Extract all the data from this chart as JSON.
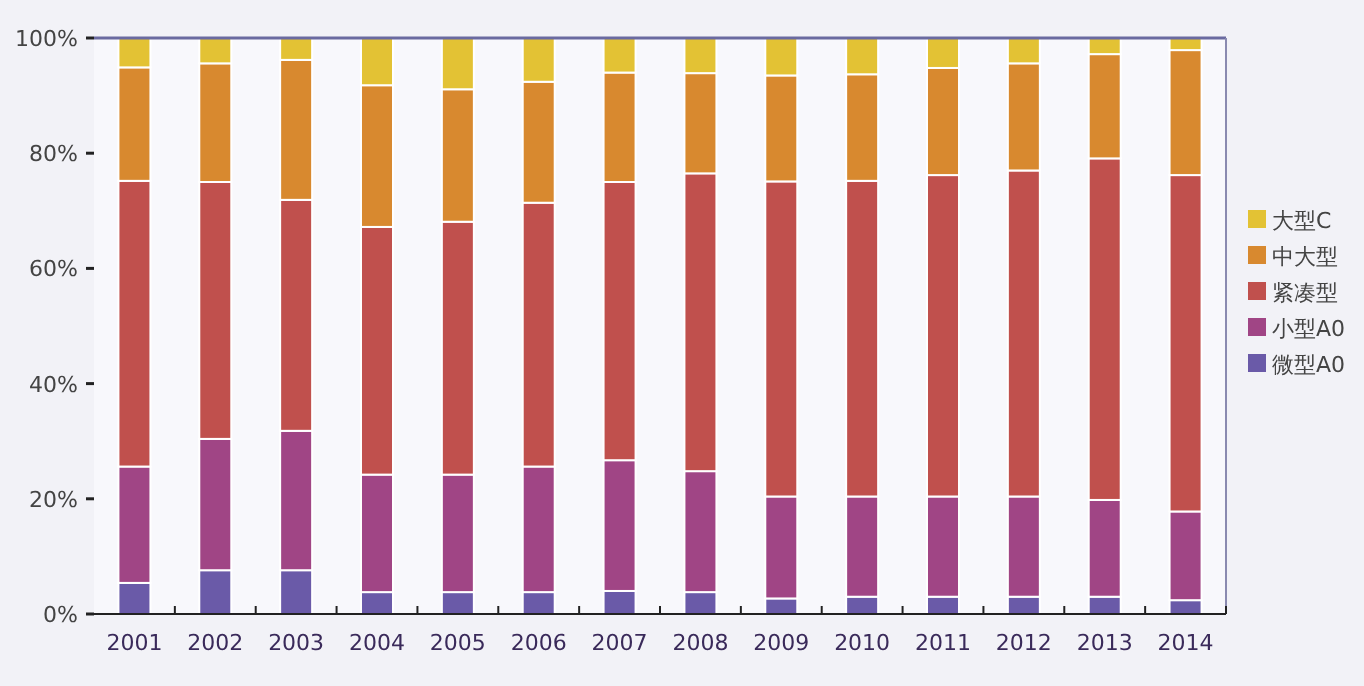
{
  "chart_data": {
    "type": "bar",
    "stacked": true,
    "categories": [
      "2001",
      "2002",
      "2003",
      "2004",
      "2005",
      "2006",
      "2007",
      "2008",
      "2009",
      "2010",
      "2011",
      "2012",
      "2013",
      "2014"
    ],
    "ylim": [
      0,
      100
    ],
    "yticks": [
      {
        "value": 0,
        "label": "0%"
      },
      {
        "value": 20,
        "label": "20%"
      },
      {
        "value": 40,
        "label": "40%"
      },
      {
        "value": 60,
        "label": "60%"
      },
      {
        "value": 80,
        "label": "80%"
      },
      {
        "value": 100,
        "label": "100%"
      }
    ],
    "grid": false,
    "legend": "right",
    "series": [
      {
        "name": "微型A0",
        "color": "#6a5aa8",
        "values": [
          5.4,
          7.6,
          7.6,
          3.8,
          3.8,
          3.8,
          4.0,
          3.8,
          2.7,
          3.0,
          3.0,
          3.0,
          3.0,
          2.4
        ]
      },
      {
        "name": "小型A0",
        "color": "#a04585",
        "values": [
          20.2,
          22.8,
          24.2,
          20.4,
          20.4,
          21.8,
          22.7,
          21.0,
          17.7,
          17.4,
          17.4,
          17.4,
          16.8,
          15.4
        ]
      },
      {
        "name": "紧凑型",
        "color": "#c0504d",
        "values": [
          49.6,
          44.6,
          40.1,
          43.0,
          43.9,
          45.8,
          48.3,
          51.7,
          54.7,
          54.8,
          55.8,
          56.6,
          59.3,
          58.4
        ]
      },
      {
        "name": "中大型",
        "color": "#d8892f",
        "values": [
          19.7,
          20.6,
          24.3,
          24.6,
          23.0,
          21.0,
          19.0,
          17.4,
          18.4,
          18.5,
          18.6,
          18.6,
          18.1,
          21.7
        ]
      },
      {
        "name": "大型C",
        "color": "#e3c234",
        "values": [
          5.1,
          4.4,
          3.8,
          8.2,
          8.9,
          7.6,
          6.0,
          6.1,
          6.5,
          6.3,
          5.2,
          4.4,
          2.8,
          2.1
        ]
      }
    ]
  }
}
